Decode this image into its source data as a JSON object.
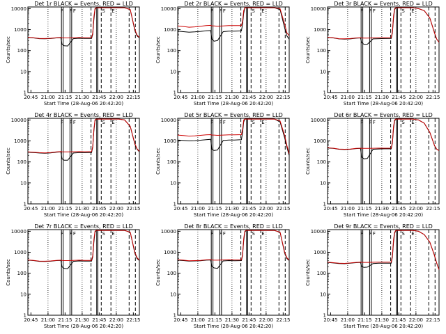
{
  "chart_data": {
    "type": "line",
    "ylabel": "Counts/sec",
    "xlabel": "Start Time (28-Aug-06 20:42:20)",
    "x_tick_labels": [
      "20:45",
      "21:00",
      "21:15",
      "21:30",
      "21:45",
      "22:00",
      "22:15"
    ],
    "y_tick_labels": [
      "1",
      "10",
      "100",
      "1000",
      "10000"
    ],
    "x_range_minutes": [
      0,
      98
    ],
    "x_ticks_minutes": [
      2.7,
      17.7,
      32.7,
      47.7,
      62.7,
      77.7,
      92.7
    ],
    "ylim": [
      1,
      12000
    ],
    "yscale": "log",
    "series_names": [
      "Events",
      "LLD"
    ],
    "series_colors": {
      "Events": "#000000",
      "LLD": "#cc0000"
    },
    "event_letters": [
      "F",
      "F",
      "F",
      "S",
      "E"
    ],
    "panels": [
      {
        "title": "Det 1r BLACK = Events, RED = LLD",
        "x": [
          0,
          5,
          10,
          15,
          20,
          25,
          29,
          30,
          32,
          35,
          40,
          45,
          50,
          56,
          57,
          58,
          59,
          60,
          62,
          64,
          66,
          70,
          75,
          80,
          85,
          90,
          94,
          96,
          98
        ],
        "Events": [
          420,
          400,
          370,
          365,
          375,
          400,
          410,
          200,
          170,
          165,
          370,
          385,
          380,
          380,
          600,
          3000,
          9000,
          11000,
          11000,
          11000,
          11000,
          11000,
          11000,
          11000,
          11000,
          9000,
          900,
          500,
          400
        ],
        "LLD": [
          430,
          410,
          380,
          375,
          385,
          410,
          420,
          410,
          400,
          400,
          410,
          420,
          410,
          410,
          700,
          4000,
          10000,
          11000,
          11000,
          11000,
          11000,
          11000,
          11000,
          11000,
          11000,
          9000,
          1000,
          550,
          420
        ]
      },
      {
        "title": "Det 2r BLACK = Events, RED = LLD",
        "x": [
          0,
          5,
          10,
          15,
          20,
          25,
          29,
          30,
          32,
          35,
          40,
          45,
          50,
          56,
          57,
          58,
          59,
          60,
          62,
          64,
          66,
          70,
          75,
          80,
          85,
          90,
          94,
          96,
          98
        ],
        "Events": [
          850,
          800,
          750,
          780,
          820,
          880,
          900,
          350,
          280,
          300,
          800,
          840,
          850,
          870,
          1800,
          6000,
          11000,
          11000,
          11000,
          11000,
          11000,
          11000,
          11000,
          11000,
          11000,
          9000,
          1200,
          500,
          350
        ],
        "LLD": [
          1500,
          1400,
          1300,
          1350,
          1450,
          1550,
          1600,
          1500,
          1500,
          1450,
          1500,
          1550,
          1550,
          1550,
          2500,
          8000,
          11000,
          11000,
          11000,
          11000,
          11000,
          11000,
          11000,
          11000,
          11000,
          10000,
          1800,
          700,
          500
        ]
      },
      {
        "title": "Det 3r BLACK = Events, RED = LLD",
        "x": [
          0,
          5,
          10,
          15,
          20,
          25,
          29,
          30,
          32,
          35,
          40,
          45,
          50,
          56,
          57,
          58,
          59,
          60,
          62,
          64,
          66,
          70,
          75,
          80,
          85,
          90,
          94,
          96,
          98
        ],
        "Events": [
          420,
          400,
          360,
          350,
          360,
          390,
          400,
          240,
          200,
          200,
          360,
          370,
          375,
          380,
          700,
          3500,
          9000,
          11000,
          11000,
          11000,
          11000,
          11000,
          11000,
          10000,
          8000,
          3500,
          700,
          350,
          250
        ],
        "LLD": [
          430,
          410,
          370,
          365,
          375,
          400,
          410,
          400,
          395,
          395,
          400,
          410,
          410,
          410,
          800,
          4500,
          10000,
          11000,
          11000,
          11000,
          11000,
          11000,
          11000,
          10000,
          8000,
          3500,
          700,
          350,
          250
        ]
      },
      {
        "title": "Det 4r BLACK = Events, RED = LLD",
        "x": [
          0,
          5,
          10,
          15,
          20,
          25,
          29,
          30,
          32,
          35,
          40,
          45,
          50,
          56,
          57,
          58,
          59,
          60,
          62,
          64,
          66,
          70,
          75,
          80,
          85,
          90,
          94,
          96,
          98
        ],
        "Events": [
          290,
          280,
          265,
          260,
          270,
          290,
          300,
          140,
          120,
          120,
          265,
          275,
          275,
          280,
          500,
          3000,
          9000,
          11000,
          11000,
          11000,
          11000,
          11000,
          11000,
          11000,
          10000,
          5000,
          700,
          400,
          300
        ],
        "LLD": [
          300,
          290,
          275,
          270,
          280,
          300,
          310,
          305,
          300,
          300,
          305,
          310,
          305,
          310,
          550,
          3500,
          10000,
          11000,
          11000,
          11000,
          11000,
          11000,
          11000,
          11000,
          10000,
          5000,
          750,
          420,
          320
        ]
      },
      {
        "title": "Det 5r BLACK = Events, RED = LLD",
        "x": [
          0,
          5,
          10,
          15,
          20,
          25,
          29,
          30,
          32,
          35,
          40,
          45,
          50,
          56,
          57,
          58,
          59,
          60,
          62,
          64,
          66,
          70,
          75,
          80,
          85,
          90,
          94,
          96,
          98
        ],
        "Events": [
          1100,
          1050,
          1000,
          1020,
          1080,
          1150,
          1200,
          400,
          350,
          370,
          1050,
          1100,
          1100,
          1150,
          2500,
          8000,
          11000,
          11000,
          11000,
          11000,
          11000,
          11000,
          11000,
          11000,
          11000,
          8000,
          1400,
          500,
          200
        ],
        "LLD": [
          1900,
          1800,
          1700,
          1750,
          1850,
          1950,
          2000,
          1900,
          1900,
          1850,
          1900,
          1950,
          1950,
          2000,
          3500,
          10000,
          11000,
          11000,
          11000,
          11000,
          11000,
          11000,
          11000,
          11000,
          11000,
          9000,
          1800,
          600,
          250
        ]
      },
      {
        "title": "Det 6r BLACK = Events, RED = LLD",
        "x": [
          0,
          5,
          10,
          15,
          20,
          25,
          29,
          30,
          32,
          35,
          40,
          45,
          50,
          56,
          57,
          58,
          59,
          60,
          62,
          64,
          66,
          70,
          75,
          80,
          85,
          90,
          94,
          96,
          98
        ],
        "Events": [
          460,
          440,
          400,
          390,
          400,
          430,
          440,
          170,
          140,
          145,
          400,
          415,
          420,
          420,
          800,
          4000,
          9000,
          11000,
          11000,
          11000,
          11000,
          11000,
          11000,
          10000,
          7000,
          2500,
          600,
          400,
          350
        ],
        "LLD": [
          470,
          450,
          410,
          400,
          410,
          440,
          450,
          445,
          440,
          440,
          445,
          455,
          450,
          450,
          900,
          5000,
          10000,
          11000,
          11000,
          11000,
          11000,
          11000,
          11000,
          10000,
          7000,
          2500,
          600,
          400,
          350
        ]
      },
      {
        "title": "Det 7r BLACK = Events, RED = LLD",
        "x": [
          0,
          5,
          10,
          15,
          20,
          25,
          29,
          30,
          32,
          35,
          40,
          45,
          50,
          56,
          57,
          58,
          59,
          60,
          62,
          64,
          66,
          70,
          75,
          80,
          85,
          90,
          94,
          96,
          98
        ],
        "Events": [
          420,
          400,
          370,
          365,
          375,
          400,
          410,
          200,
          170,
          165,
          370,
          385,
          380,
          380,
          600,
          3000,
          9000,
          11000,
          11000,
          11000,
          11000,
          11000,
          11000,
          11000,
          11000,
          9000,
          900,
          500,
          400
        ],
        "LLD": [
          430,
          410,
          380,
          375,
          385,
          410,
          420,
          410,
          400,
          400,
          410,
          420,
          410,
          410,
          700,
          4000,
          10000,
          11000,
          11000,
          11000,
          11000,
          11000,
          11000,
          11000,
          11000,
          9000,
          1000,
          550,
          420
        ]
      },
      {
        "title": "Det 8r BLACK = Events, RED = LLD",
        "x": [
          0,
          5,
          10,
          15,
          20,
          25,
          29,
          30,
          32,
          35,
          40,
          45,
          50,
          56,
          57,
          58,
          59,
          60,
          62,
          64,
          66,
          70,
          75,
          80,
          85,
          90,
          94,
          96,
          98
        ],
        "Events": [
          420,
          400,
          380,
          385,
          395,
          420,
          430,
          210,
          180,
          170,
          385,
          400,
          395,
          400,
          700,
          3500,
          9000,
          11000,
          11000,
          11000,
          11000,
          11000,
          11000,
          11000,
          11000,
          9000,
          900,
          500,
          400
        ],
        "LLD": [
          440,
          420,
          395,
          400,
          410,
          435,
          445,
          430,
          420,
          420,
          430,
          440,
          430,
          430,
          800,
          4500,
          10000,
          11000,
          11000,
          11000,
          11000,
          11000,
          11000,
          11000,
          11000,
          9000,
          1000,
          550,
          420
        ]
      },
      {
        "title": "Det 9r BLACK = Events, RED = LLD",
        "x": [
          0,
          5,
          10,
          15,
          20,
          25,
          29,
          30,
          32,
          35,
          40,
          45,
          50,
          56,
          57,
          58,
          59,
          60,
          62,
          64,
          66,
          70,
          75,
          80,
          85,
          90,
          94,
          96,
          98
        ],
        "Events": [
          330,
          310,
          290,
          285,
          300,
          320,
          330,
          210,
          190,
          195,
          290,
          300,
          300,
          300,
          600,
          3000,
          8000,
          11000,
          11000,
          11000,
          11000,
          11000,
          11000,
          10000,
          7000,
          3000,
          700,
          300,
          150
        ],
        "LLD": [
          340,
          320,
          300,
          295,
          310,
          330,
          340,
          335,
          330,
          330,
          335,
          340,
          340,
          340,
          700,
          4000,
          9000,
          11000,
          11000,
          11000,
          11000,
          11000,
          11000,
          10000,
          7000,
          3000,
          700,
          300,
          150
        ]
      }
    ]
  }
}
